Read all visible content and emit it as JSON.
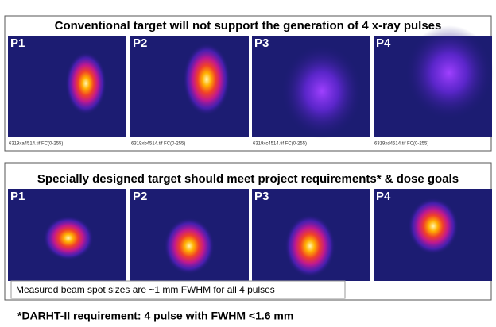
{
  "top_panel": {
    "title": "Conventional target will not support the generation of 4 x-ray pulses",
    "images": [
      {
        "label": "P1",
        "caption": "6319xa4514.tif FC(0-255)"
      },
      {
        "label": "P2",
        "caption": "6319xb4514.tif FC(0-255)"
      },
      {
        "label": "P3",
        "caption": "6319xc4514.tif FC(0-255)"
      },
      {
        "label": "P4",
        "caption": "6319xd4514.tif FC(0-255)"
      }
    ]
  },
  "bottom_panel": {
    "title": "Specially designed target should meet project requirements* & dose goals",
    "images": [
      {
        "label": "P1"
      },
      {
        "label": "P2"
      },
      {
        "label": "P3"
      },
      {
        "label": "P4"
      }
    ],
    "note": "Measured beam spot sizes are  ~1 mm FWHM for all 4 pulses"
  },
  "footer": "*DARHT-II requirement: 4 pulse with FWHM <1.6 mm"
}
